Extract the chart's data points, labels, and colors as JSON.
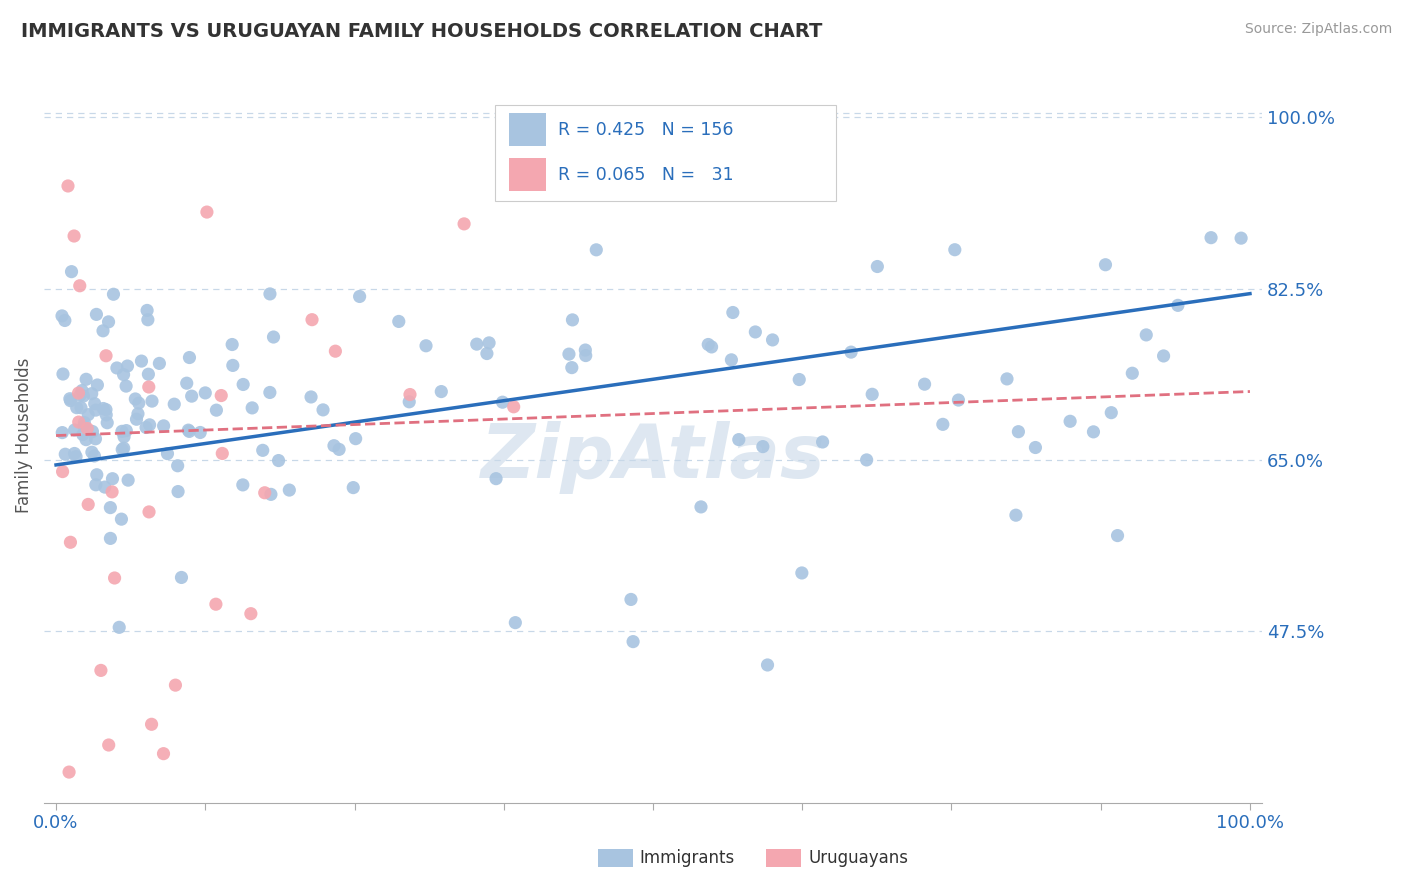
{
  "title": "IMMIGRANTS VS URUGUAYAN FAMILY HOUSEHOLDS CORRELATION CHART",
  "source_text": "Source: ZipAtlas.com",
  "ylabel": "Family Households",
  "legend_label1": "Immigrants",
  "legend_label2": "Uruguayans",
  "R1": 0.425,
  "N1": 156,
  "R2": 0.065,
  "N2": 31,
  "xlim": [
    0.0,
    100.0
  ],
  "ylim": [
    30.0,
    105.0
  ],
  "yticks": [
    47.5,
    65.0,
    82.5,
    100.0
  ],
  "ytick_labels": [
    "47.5%",
    "65.0%",
    "82.5%",
    "100.0%"
  ],
  "color_blue": "#a8c4e0",
  "color_pink": "#f4a7b0",
  "line_blue": "#2a6ebb",
  "line_pink": "#e07080",
  "tick_color": "#2a6ebb",
  "grid_color": "#c8d8e8",
  "background_color": "#ffffff",
  "watermark": "ZipAtlas",
  "watermark_color": "#c8d8e8",
  "blue_trend_start_y": 64.5,
  "blue_trend_end_y": 82.0,
  "pink_trend_start_y": 67.5,
  "pink_trend_end_y": 72.0
}
